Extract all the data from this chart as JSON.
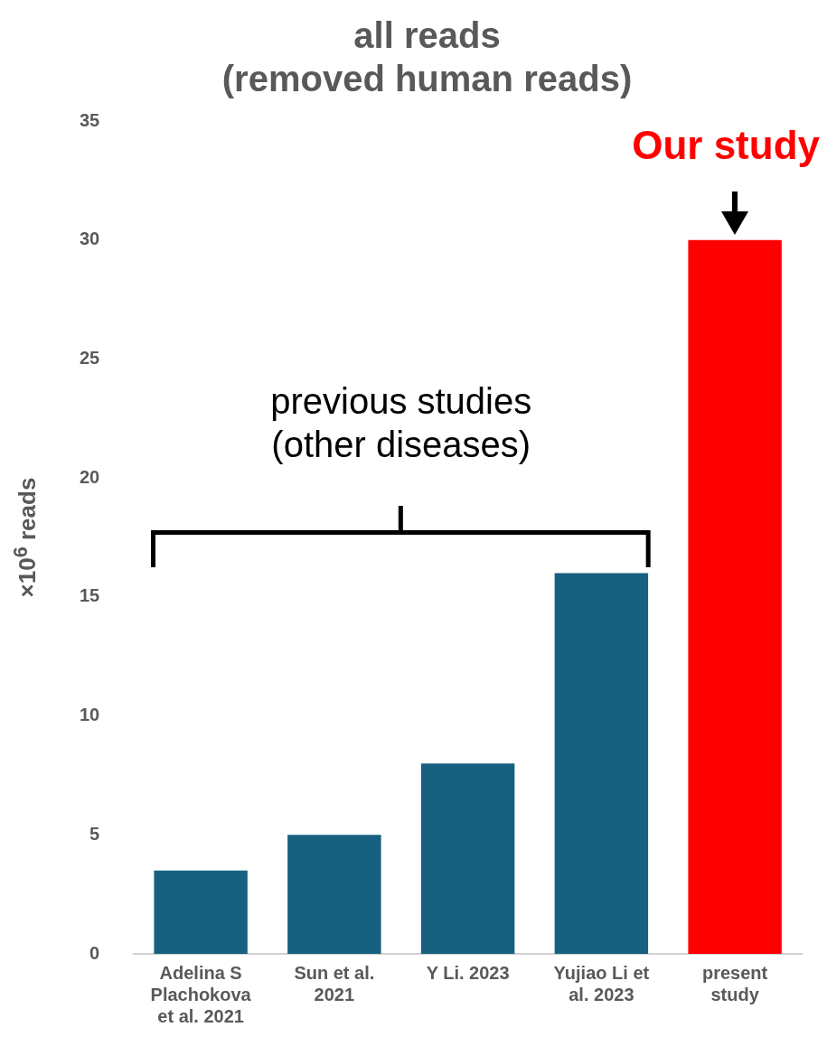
{
  "chart_data": {
    "type": "bar",
    "title": "all reads\n(removed human reads)",
    "ylabel": "×10$^{6}$ reads",
    "categories": [
      "Adelina S Plachokova et al. 2021",
      "Sun et al. 2021",
      "Y Li. 2023",
      "Yujiao Li et al. 2023",
      "present study"
    ],
    "values": [
      3.5,
      5,
      8,
      16,
      30
    ],
    "colors": [
      "#17607f",
      "#17607f",
      "#17607f",
      "#17607f",
      "#ff0000"
    ],
    "ylim": [
      0,
      35
    ],
    "yticks": [
      0,
      5,
      10,
      15,
      20,
      25,
      30,
      35
    ],
    "grid": false,
    "legend": false,
    "annotations": [
      {
        "text": "Our study",
        "x": "present study",
        "y": 30
      },
      "previous studies\n(other diseases)"
    ]
  }
}
